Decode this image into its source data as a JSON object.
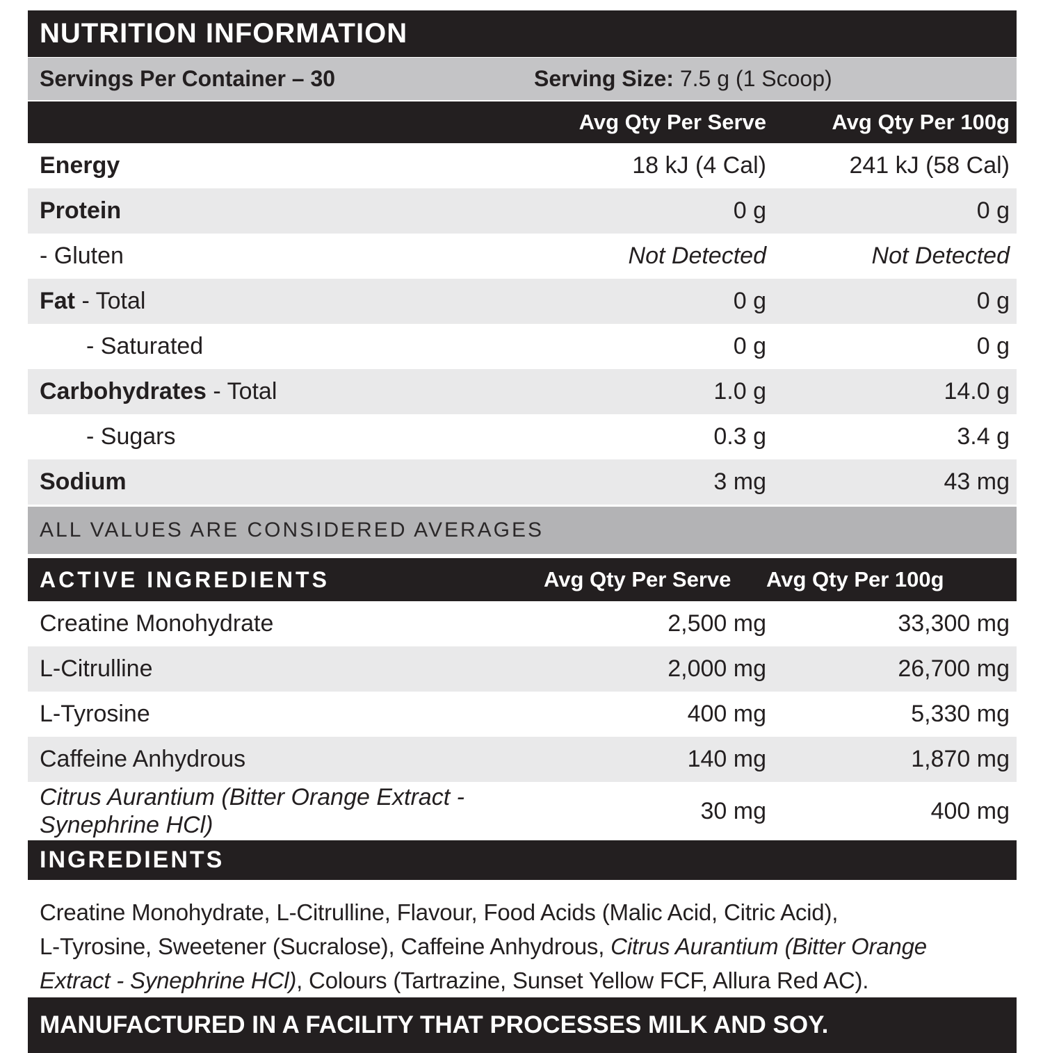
{
  "header": {
    "title": "NUTRITION INFORMATION"
  },
  "serving_info": {
    "servings_per_container": "Servings Per Container – 30",
    "serving_size_label": "Serving Size:",
    "serving_size_value": " 7.5 g (1 Scoop)"
  },
  "columns": {
    "per_serve": "Avg Qty Per Serve",
    "per_100g": "Avg Qty Per 100g"
  },
  "nutrition_rows": [
    {
      "label_bold": "Energy",
      "label_rest": "",
      "serve": "18 kJ (4 Cal)",
      "per100": "241 kJ (58 Cal)"
    },
    {
      "label_bold": "Protein",
      "label_rest": "",
      "serve": "0 g",
      "per100": "0 g"
    },
    {
      "label_bold": "",
      "label_rest": "- Gluten",
      "serve": "Not Detected",
      "per100": "Not Detected"
    },
    {
      "label_bold": "Fat",
      "label_rest": " - Total",
      "serve": "0 g",
      "per100": "0 g"
    },
    {
      "label_bold": "",
      "label_rest": "- Saturated",
      "serve": "0 g",
      "per100": "0 g"
    },
    {
      "label_bold": "Carbohydrates",
      "label_rest": " - Total",
      "serve": "1.0 g",
      "per100": "14.0 g"
    },
    {
      "label_bold": "",
      "label_rest": "- Sugars",
      "serve": "0.3 g",
      "per100": "3.4 g"
    },
    {
      "label_bold": "Sodium",
      "label_rest": "",
      "serve": "3 mg",
      "per100": "43 mg"
    }
  ],
  "averages_note": "ALL VALUES ARE CONSIDERED AVERAGES",
  "active": {
    "title": "ACTIVE INGREDIENTS",
    "rows": [
      {
        "name": "Creatine Monohydrate",
        "serve": "2,500 mg",
        "per100": "33,300 mg"
      },
      {
        "name": "L-Citrulline",
        "serve": "2,000 mg",
        "per100": "26,700 mg"
      },
      {
        "name": "L-Tyrosine",
        "serve": "400 mg",
        "per100": "5,330 mg"
      },
      {
        "name": "Caffeine Anhydrous",
        "serve": "140 mg",
        "per100": "1,870 mg"
      },
      {
        "name": "Citrus Aurantium (Bitter Orange Extract - Synephrine HCl)",
        "serve": "30 mg",
        "per100": "400 mg"
      }
    ]
  },
  "ingredients": {
    "title": "INGREDIENTS",
    "lines": [
      {
        "regular": "Creatine Monohydrate, L-Citrulline, Flavour, Food Acids (Malic Acid, Citric Acid),",
        "italic": ""
      },
      {
        "regular": "L-Tyrosine, Sweetener (Sucralose), Caffeine Anhydrous, ",
        "italic": "Citrus Aurantium (Bitter Orange"
      },
      {
        "italic": "Extract - Synephrine HCl)",
        "regular2": ", Colours (Tartrazine, Sunset Yellow FCF, Allura Red AC)."
      }
    ]
  },
  "facility_note": "MANUFACTURED IN A FACILITY THAT PROCESSES MILK AND SOY.",
  "colors": {
    "black": "#231f20",
    "silver_bar": "#c4c4c6",
    "row_shade": "#e9e9ea",
    "averages_bar": "#b3b3b5"
  }
}
